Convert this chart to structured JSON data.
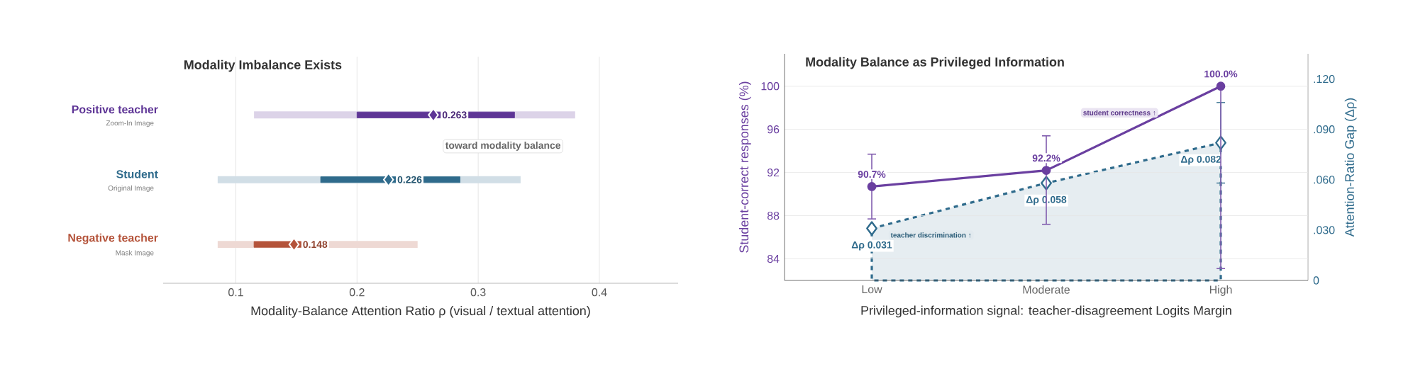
{
  "chart_data": [
    {
      "type": "box",
      "orientation": "horizontal",
      "title": "Modality Imbalance Exists",
      "xlabel": "Modality-Balance Attention Ratio ρ (visual / textual attention)",
      "categories": [
        "Positive teacher",
        "Student",
        "Negative teacher"
      ],
      "colors": [
        "#5e3596",
        "#2f6b8c",
        "#b4533a"
      ],
      "boxes": [
        {
          "low": 0.115,
          "q1": 0.2,
          "median": 0.263,
          "q3": 0.33,
          "high": 0.38
        },
        {
          "low": 0.085,
          "q1": 0.17,
          "median": 0.226,
          "q3": 0.285,
          "high": 0.335
        },
        {
          "low": 0.085,
          "q1": 0.115,
          "median": 0.148,
          "q3": 0.16,
          "high": 0.25
        }
      ],
      "xlim": [
        0.04,
        0.465
      ],
      "xticks": [
        0.1,
        0.2,
        0.3,
        0.4
      ],
      "grid": "x",
      "annotations": [
        "Zoom-In Image",
        "Original Image",
        "Mask Image",
        "0.263",
        "0.226",
        "0.148",
        "toward modality balance"
      ]
    },
    {
      "type": "line",
      "title": "Modality Balance as Privileged Information",
      "xlabel": "Privileged-information signal: teacher-disagreement Logits Margin",
      "ylabel": "Student-correct responses (%)",
      "y2label": "Attention-Ratio Gap (Δρ)",
      "categories": [
        "Low",
        "Moderate",
        "High"
      ],
      "ylim": [
        82,
        103
      ],
      "yticks": [
        84,
        88,
        92,
        96,
        100
      ],
      "y2lim": [
        0,
        0.135
      ],
      "y2ticks": [
        {
          "value": 0,
          "label": "0"
        },
        {
          "value": 0.03,
          "label": ".030"
        },
        {
          "value": 0.06,
          "label": ".060"
        },
        {
          "value": 0.09,
          "label": ".090"
        },
        {
          "value": 0.12,
          "label": ".120"
        }
      ],
      "grid": "y",
      "series": [
        {
          "color": "#6a3fa0",
          "values": [
            90.7,
            92.2,
            100.0
          ],
          "value_labels": [
            "90.7%",
            "92.2%",
            "100.0%"
          ],
          "errors": [
            [
              87.7,
              93.7
            ],
            [
              87.2,
              95.4
            ],
            [
              83.1,
              100.0
            ]
          ],
          "marker": "circle",
          "line_style": "solid"
        },
        {
          "type": "area",
          "axis": "y2",
          "color": "#2f6b8c",
          "values": [
            0.031,
            0.058,
            0.082
          ],
          "value_labels": [
            "Δρ 0.031",
            "Δρ 0.058",
            "Δρ 0.082"
          ],
          "errors": [
            null,
            null,
            [
              0.058,
              0.106
            ]
          ],
          "marker": "diamond",
          "line_style": "dashed"
        }
      ],
      "annotations": [
        "student correctness ↑",
        "teacher discrimination ↑"
      ]
    }
  ]
}
